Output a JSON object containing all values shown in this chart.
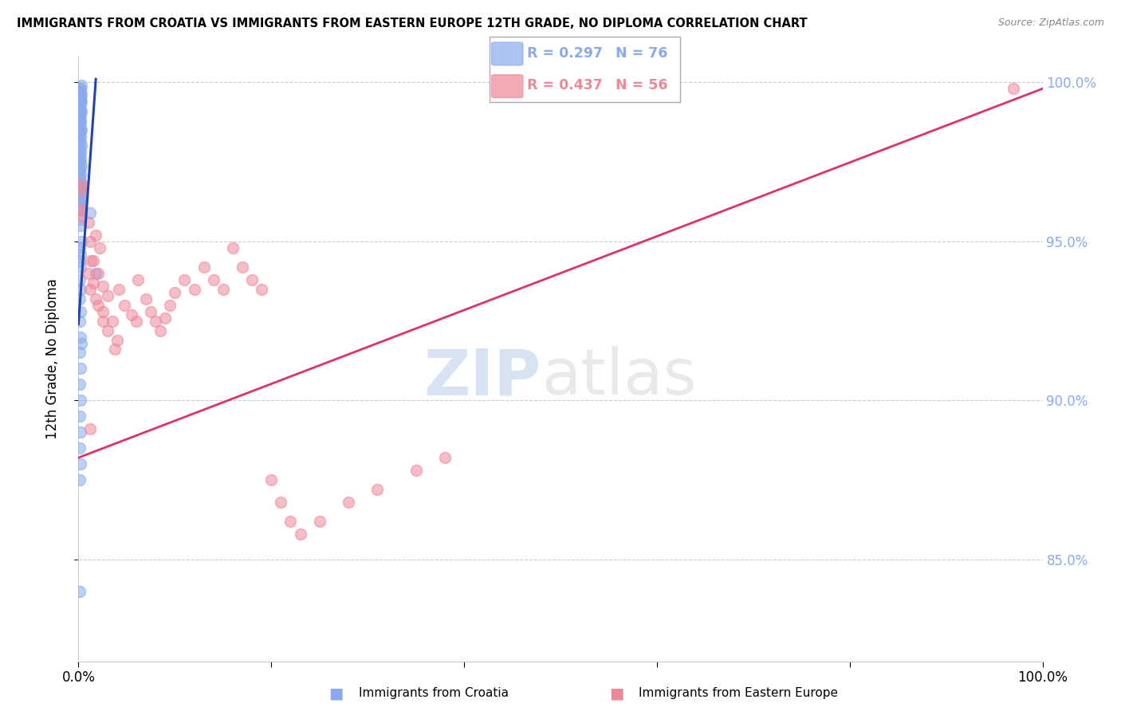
{
  "title": "IMMIGRANTS FROM CROATIA VS IMMIGRANTS FROM EASTERN EUROPE 12TH GRADE, NO DIPLOMA CORRELATION CHART",
  "source": "Source: ZipAtlas.com",
  "ylabel": "12th Grade, No Diploma",
  "xlabel_label1": "Immigrants from Croatia",
  "xlabel_label2": "Immigrants from Eastern Europe",
  "legend_r1": "R = 0.297",
  "legend_n1": "N = 76",
  "legend_r2": "R = 0.437",
  "legend_n2": "N = 56",
  "color_blue": "#89AAEE",
  "color_blue_dark": "#4466BB",
  "color_blue_line": "#2244AA",
  "color_pink": "#EE8899",
  "color_pink_line": "#DD3366",
  "xmin": 0.0,
  "xmax": 1.0,
  "ymin": 0.818,
  "ymax": 1.008,
  "yticks": [
    0.85,
    0.9,
    0.95,
    1.0
  ],
  "ytick_labels": [
    "85.0%",
    "90.0%",
    "95.0%",
    "100.0%"
  ],
  "xticks": [
    0.0,
    0.2,
    0.4,
    0.6,
    0.8,
    1.0
  ],
  "xtick_labels": [
    "0.0%",
    "",
    "",
    "",
    "",
    "100.0%"
  ],
  "blue_scatter_x": [
    0.003,
    0.001,
    0.002,
    0.001,
    0.002,
    0.003,
    0.001,
    0.002,
    0.001,
    0.003,
    0.002,
    0.001,
    0.002,
    0.001,
    0.003,
    0.002,
    0.001,
    0.002,
    0.001,
    0.002,
    0.001,
    0.002,
    0.001,
    0.003,
    0.002,
    0.001,
    0.002,
    0.001,
    0.002,
    0.003,
    0.001,
    0.002,
    0.001,
    0.002,
    0.001,
    0.003,
    0.002,
    0.001,
    0.002,
    0.001,
    0.002,
    0.001,
    0.002,
    0.001,
    0.003,
    0.002,
    0.001,
    0.002,
    0.001,
    0.002,
    0.012,
    0.001,
    0.002,
    0.003,
    0.001,
    0.002,
    0.001,
    0.002,
    0.018,
    0.001,
    0.002,
    0.001,
    0.002,
    0.001,
    0.002,
    0.003,
    0.001,
    0.002,
    0.001,
    0.002,
    0.001,
    0.002,
    0.001,
    0.002,
    0.001,
    0.001
  ],
  "blue_scatter_y": [
    0.999,
    0.998,
    0.998,
    0.997,
    0.997,
    0.996,
    0.996,
    0.995,
    0.995,
    0.994,
    0.994,
    0.993,
    0.993,
    0.992,
    0.991,
    0.991,
    0.99,
    0.99,
    0.989,
    0.988,
    0.988,
    0.987,
    0.986,
    0.985,
    0.985,
    0.984,
    0.983,
    0.982,
    0.981,
    0.98,
    0.979,
    0.978,
    0.977,
    0.976,
    0.975,
    0.974,
    0.973,
    0.972,
    0.971,
    0.97,
    0.969,
    0.968,
    0.967,
    0.966,
    0.965,
    0.964,
    0.963,
    0.962,
    0.961,
    0.96,
    0.959,
    0.957,
    0.955,
    0.95,
    0.948,
    0.946,
    0.944,
    0.942,
    0.94,
    0.938,
    0.935,
    0.932,
    0.928,
    0.925,
    0.92,
    0.918,
    0.915,
    0.91,
    0.905,
    0.9,
    0.895,
    0.89,
    0.885,
    0.88,
    0.875,
    0.84
  ],
  "pink_scatter_x": [
    0.003,
    0.003,
    0.003,
    0.003,
    0.01,
    0.012,
    0.013,
    0.01,
    0.015,
    0.012,
    0.018,
    0.02,
    0.025,
    0.018,
    0.022,
    0.015,
    0.02,
    0.025,
    0.03,
    0.025,
    0.035,
    0.03,
    0.04,
    0.038,
    0.042,
    0.048,
    0.055,
    0.06,
    0.062,
    0.07,
    0.075,
    0.08,
    0.085,
    0.09,
    0.095,
    0.1,
    0.11,
    0.12,
    0.13,
    0.14,
    0.15,
    0.16,
    0.17,
    0.18,
    0.19,
    0.2,
    0.21,
    0.22,
    0.23,
    0.25,
    0.28,
    0.31,
    0.35,
    0.38,
    0.012,
    0.97
  ],
  "pink_scatter_y": [
    0.96,
    0.966,
    0.968,
    0.958,
    0.956,
    0.95,
    0.944,
    0.94,
    0.937,
    0.935,
    0.932,
    0.93,
    0.925,
    0.952,
    0.948,
    0.944,
    0.94,
    0.936,
    0.933,
    0.928,
    0.925,
    0.922,
    0.919,
    0.916,
    0.935,
    0.93,
    0.927,
    0.925,
    0.938,
    0.932,
    0.928,
    0.925,
    0.922,
    0.926,
    0.93,
    0.934,
    0.938,
    0.935,
    0.942,
    0.938,
    0.935,
    0.948,
    0.942,
    0.938,
    0.935,
    0.875,
    0.868,
    0.862,
    0.858,
    0.862,
    0.868,
    0.872,
    0.878,
    0.882,
    0.891,
    0.998
  ],
  "blue_line_x": [
    0.0,
    0.018
  ],
  "blue_line_y": [
    0.924,
    1.001
  ],
  "pink_line_x": [
    0.0,
    1.0
  ],
  "pink_line_y": [
    0.882,
    0.998
  ]
}
